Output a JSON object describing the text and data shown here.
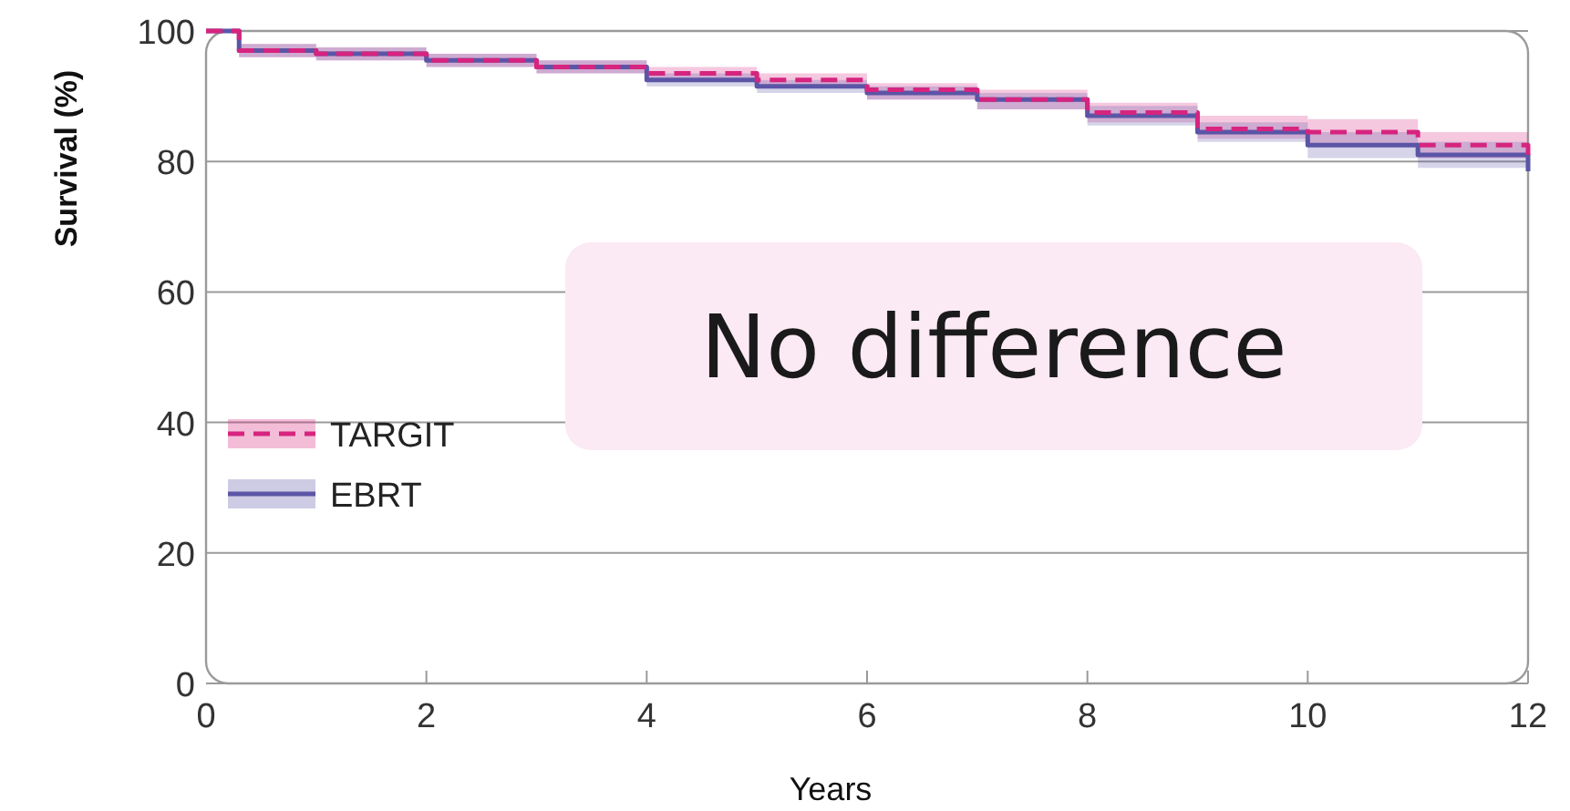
{
  "chart_data": {
    "type": "step",
    "xlabel": "Years",
    "ylabel": "Survival (%)",
    "x": [
      0,
      0.3,
      1,
      2,
      3,
      4,
      5,
      6,
      7,
      8,
      9,
      10,
      11,
      12
    ],
    "xlim": [
      0,
      12
    ],
    "xticks": [
      0,
      2,
      4,
      6,
      8,
      10,
      12
    ],
    "ylim": [
      0,
      100
    ],
    "yticks": [
      0,
      20,
      40,
      60,
      80,
      100
    ],
    "grid": "y",
    "legend": "bottom left",
    "series": [
      {
        "name": "TARGIT",
        "color": "#d6247f",
        "line_style": "dashed",
        "values": [
          100,
          97,
          96.5,
          95.5,
          94.5,
          93.5,
          92.5,
          91,
          89.5,
          87.5,
          85,
          84.5,
          82.5,
          81
        ],
        "lower": [
          100,
          96,
          95.5,
          94.5,
          93.5,
          92.5,
          91.5,
          89.5,
          88,
          86,
          83.5,
          82.5,
          80.5,
          79
        ],
        "upper": [
          100,
          98,
          97.5,
          96.5,
          95.5,
          94.5,
          93.5,
          92,
          91,
          89,
          87,
          86.5,
          84.5,
          83
        ]
      },
      {
        "name": "EBRT",
        "color": "#5b55a6",
        "line_style": "solid",
        "values": [
          100,
          97,
          96.5,
          95.5,
          94.5,
          92.5,
          91.5,
          90.5,
          89.5,
          87,
          84.5,
          82.5,
          81,
          78.5
        ],
        "lower": [
          100,
          96,
          95.5,
          94.5,
          93.5,
          91.5,
          90.5,
          89.5,
          88,
          85.5,
          83,
          80.5,
          79,
          76
        ],
        "upper": [
          100,
          98,
          97.5,
          96.5,
          95.5,
          93.5,
          92.5,
          91.5,
          90.5,
          88.5,
          86,
          84.5,
          83,
          81
        ]
      }
    ],
    "annotations": [
      "No difference"
    ]
  }
}
